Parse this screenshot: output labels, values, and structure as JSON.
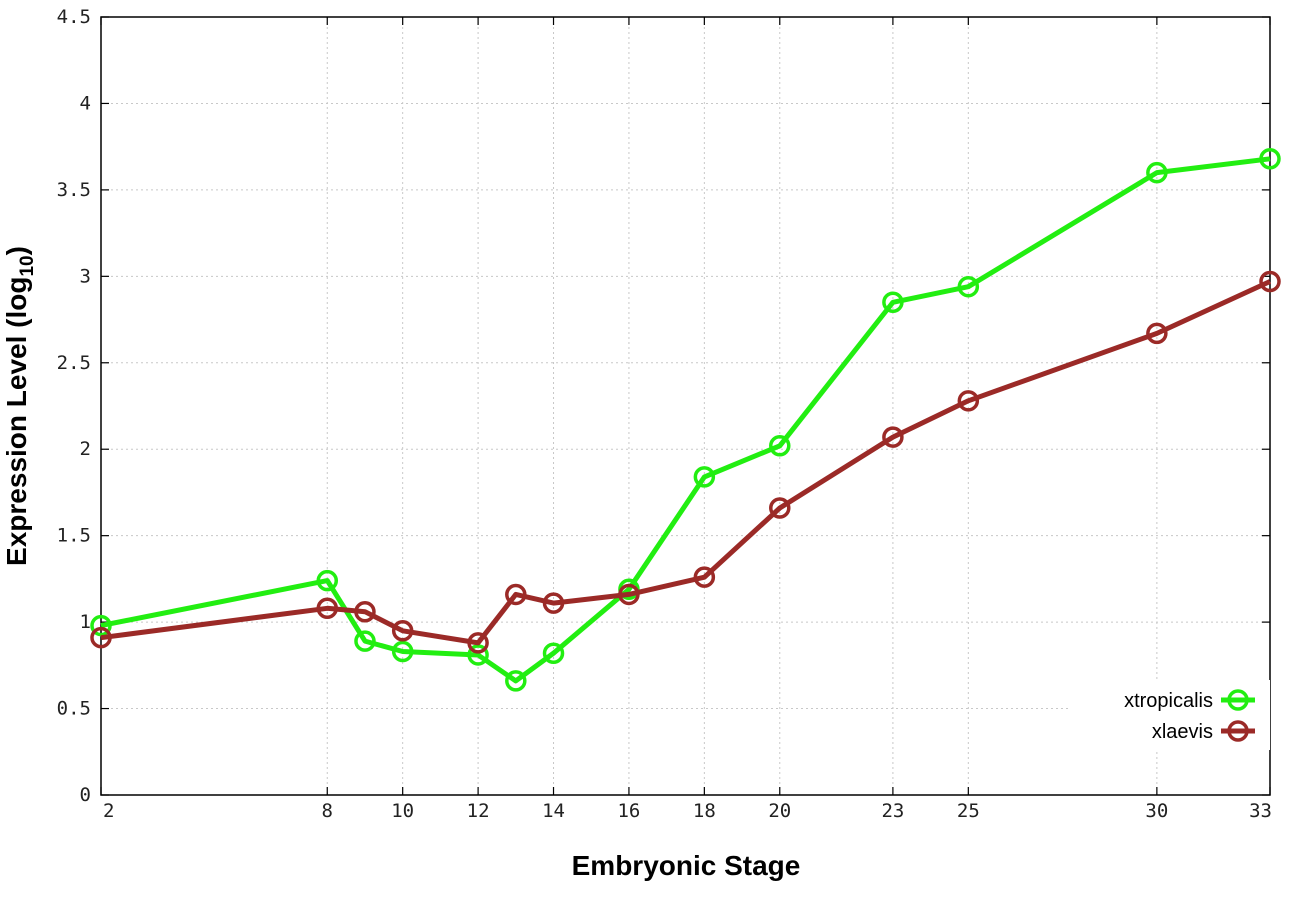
{
  "chart_data": {
    "type": "line",
    "xlabel": "Embryonic Stage",
    "ylabel_main": "Expression Level (log",
    "ylabel_sub": "10",
    "ylabel_close": ")",
    "ylim": [
      0,
      4.5
    ],
    "xlim": [
      2,
      33
    ],
    "grid": true,
    "legend_position": "bottom-right",
    "y_ticks": [
      {
        "value": 0,
        "label": "0"
      },
      {
        "value": 0.5,
        "label": "0.5"
      },
      {
        "value": 1,
        "label": "1"
      },
      {
        "value": 1.5,
        "label": "1.5"
      },
      {
        "value": 2,
        "label": "2"
      },
      {
        "value": 2.5,
        "label": "2.5"
      },
      {
        "value": 3,
        "label": "3"
      },
      {
        "value": 3.5,
        "label": "3.5"
      },
      {
        "value": 4,
        "label": "4"
      },
      {
        "value": 4.5,
        "label": "4.5"
      }
    ],
    "x_ticks": [
      {
        "value": 2,
        "label": "2"
      },
      {
        "value": 8,
        "label": "8"
      },
      {
        "value": 10,
        "label": "10"
      },
      {
        "value": 12,
        "label": "12"
      },
      {
        "value": 14,
        "label": "14"
      },
      {
        "value": 16,
        "label": "16"
      },
      {
        "value": 18,
        "label": "18"
      },
      {
        "value": 20,
        "label": "20"
      },
      {
        "value": 23,
        "label": "23"
      },
      {
        "value": 25,
        "label": "25"
      },
      {
        "value": 30,
        "label": "30"
      },
      {
        "value": 33,
        "label": "33"
      }
    ],
    "x": [
      2,
      8,
      9,
      10,
      12,
      13,
      14,
      16,
      18,
      20,
      23,
      25,
      30,
      33
    ],
    "series": [
      {
        "name": "xtropicalis",
        "color": "#22ee11",
        "values": [
          0.98,
          1.24,
          0.89,
          0.83,
          0.81,
          0.66,
          0.82,
          1.19,
          1.84,
          2.02,
          2.85,
          2.94,
          3.6,
          3.68
        ]
      },
      {
        "name": "xlaevis",
        "color": "#9b2a27",
        "values": [
          0.91,
          1.08,
          1.06,
          0.95,
          0.88,
          1.16,
          1.11,
          1.16,
          1.26,
          1.66,
          2.07,
          2.28,
          2.67,
          2.97
        ]
      }
    ]
  }
}
